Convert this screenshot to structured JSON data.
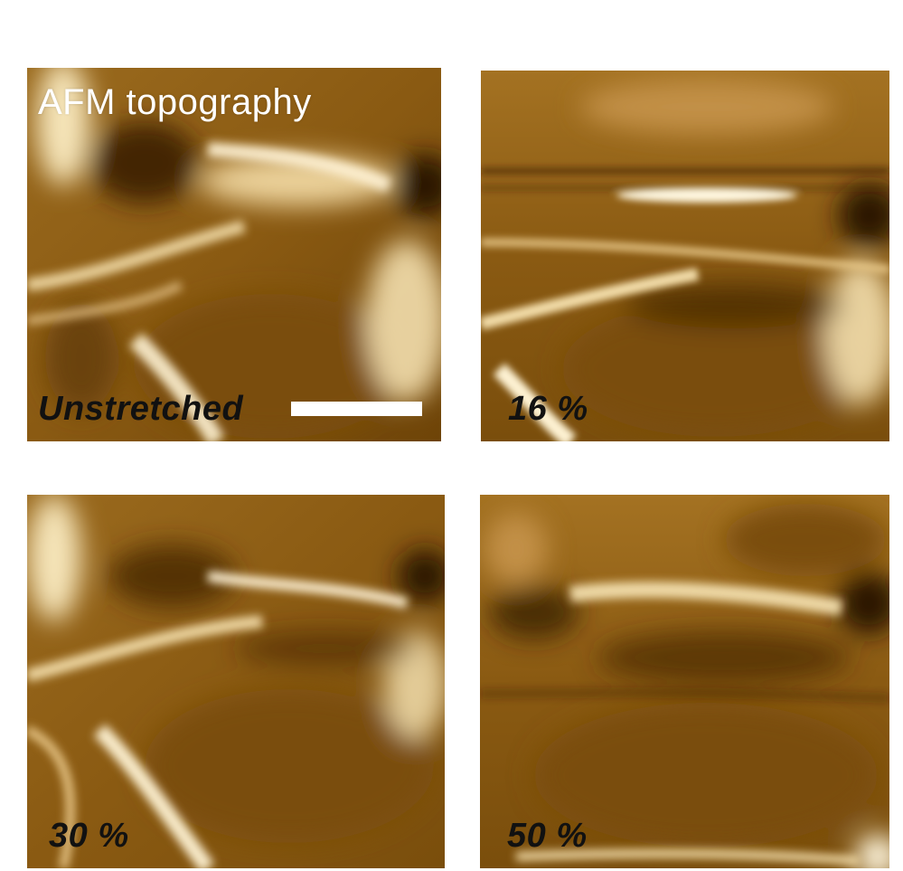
{
  "figure": {
    "header_label": "AFM topography",
    "panels": [
      {
        "strain_label": "Unstretched"
      },
      {
        "strain_label": "16 %"
      },
      {
        "strain_label": "30 %"
      },
      {
        "strain_label": "50 %"
      }
    ]
  },
  "colors": {
    "colormap_dark": "#3a1f00",
    "colormap_mid": "#9a6a1e",
    "colormap_light": "#fff7df",
    "scale_bar": "#ffffff"
  }
}
